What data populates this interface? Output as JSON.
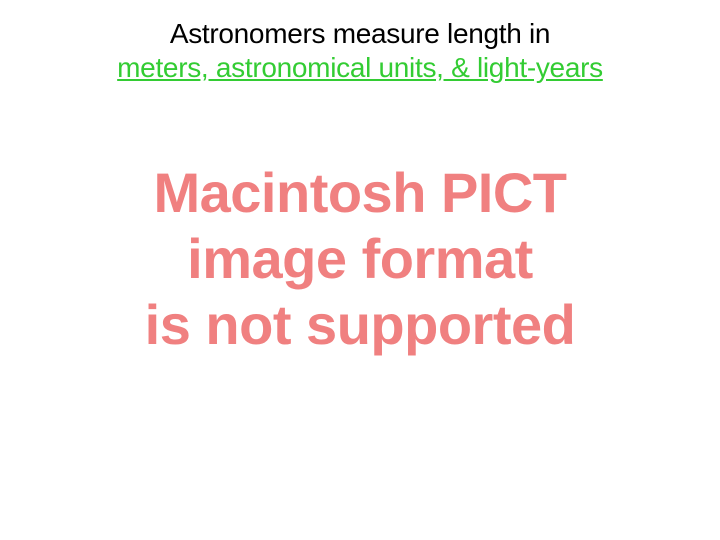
{
  "colors": {
    "title_color": "#000000",
    "subtitle_color": "#33cc33",
    "error_color": "#f08080",
    "background": "#ffffff"
  },
  "title": "Astronomers measure length in",
  "subtitle": "meters, astronomical units, & light-years",
  "error": {
    "line1": "Macintosh PICT",
    "line2": "image format",
    "line3": "is not supported"
  }
}
